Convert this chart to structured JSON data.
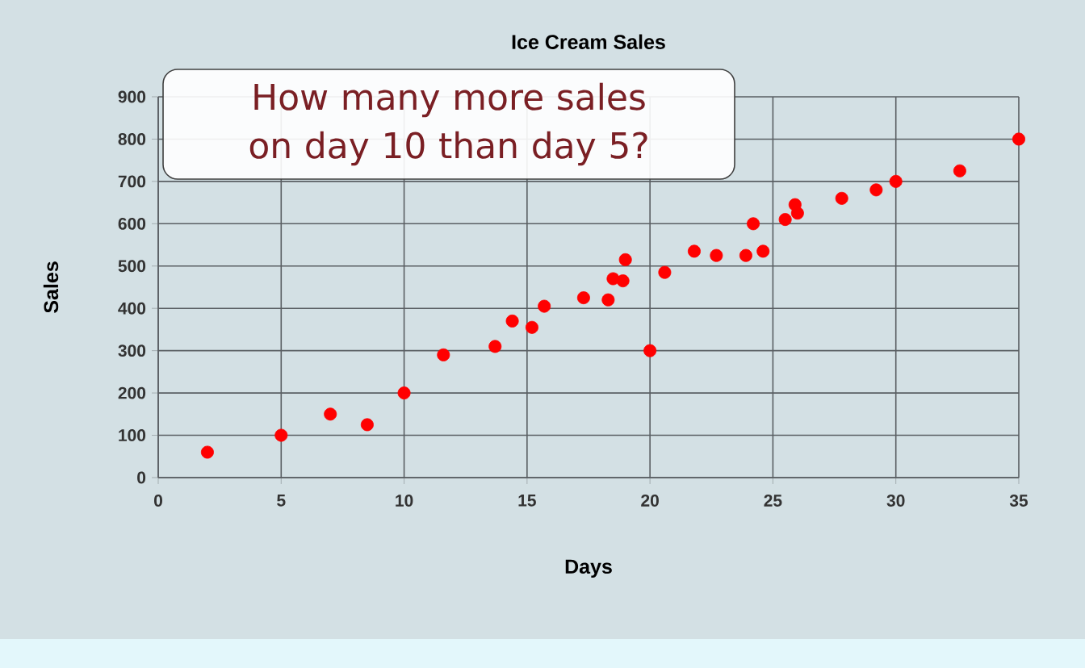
{
  "chart_data": {
    "type": "scatter",
    "title": "Ice Cream Sales",
    "xlabel": "Days",
    "ylabel": "Sales",
    "x": [
      2,
      5,
      7,
      8.5,
      10,
      11.6,
      13.7,
      14.4,
      15.2,
      15.7,
      17.3,
      18.3,
      18.5,
      18.9,
      19,
      20,
      20.6,
      21.8,
      22.7,
      23.9,
      24.2,
      24.6,
      25.5,
      25.9,
      26,
      27.8,
      29.2,
      30,
      32.6,
      35
    ],
    "values": [
      60,
      100,
      150,
      125,
      200,
      290,
      310,
      370,
      355,
      405,
      425,
      420,
      470,
      465,
      515,
      300,
      485,
      535,
      525,
      525,
      600,
      535,
      610,
      645,
      625,
      660,
      680,
      700,
      725,
      800
    ],
    "color": "#ff0000",
    "marker": "circle",
    "xlim": [
      0,
      35
    ],
    "ylim": [
      0,
      900
    ],
    "xticks": [
      0,
      5,
      10,
      15,
      20,
      25,
      30,
      35
    ],
    "yticks": [
      0,
      100,
      200,
      300,
      400,
      500,
      600,
      700,
      800,
      900
    ],
    "grid": true,
    "annotations": [
      "How many more sales on day 10 than day 5?"
    ]
  }
}
